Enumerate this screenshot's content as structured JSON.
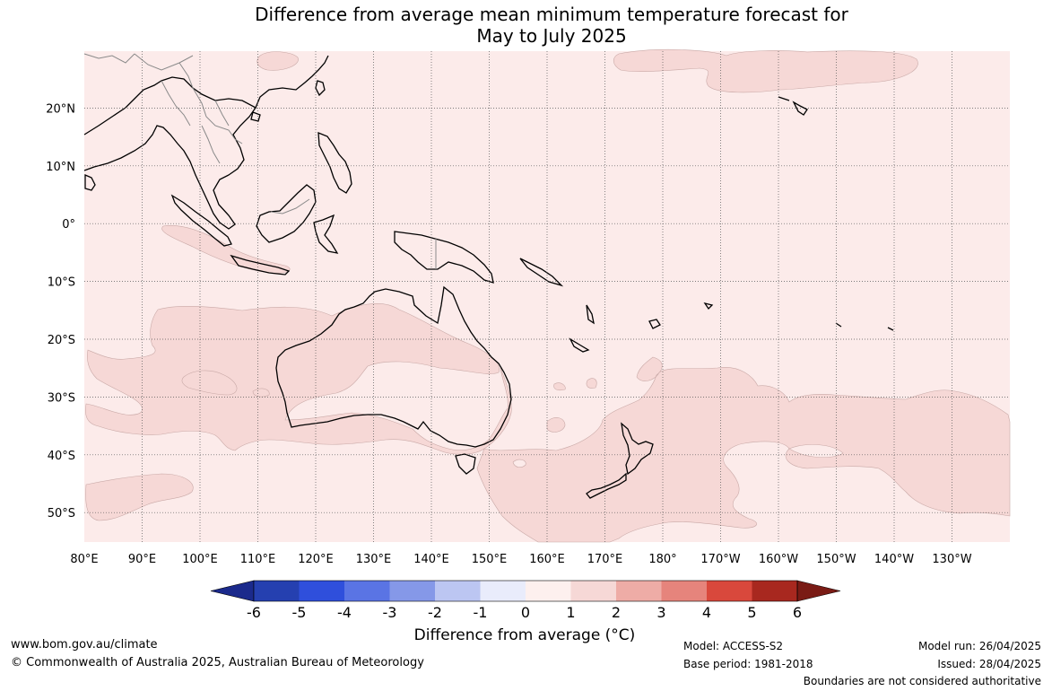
{
  "title": {
    "line1": "Difference from average mean minimum temperature forecast for",
    "line2": "May to July 2025"
  },
  "map": {
    "region": "Indo-Pacific / Australia",
    "lon_range": [
      "80°E",
      "130°W"
    ],
    "lat_range": [
      "55°S",
      "30°N"
    ],
    "lon_ticks": [
      "80°E",
      "90°E",
      "100°E",
      "110°E",
      "120°E",
      "130°E",
      "140°E",
      "150°E",
      "160°E",
      "170°E",
      "180°",
      "170°W",
      "160°W",
      "150°W",
      "140°W",
      "130°W"
    ],
    "lat_ticks": [
      "20°N",
      "10°N",
      "0°",
      "10°S",
      "20°S",
      "30°S",
      "40°S",
      "50°S"
    ],
    "grid": true,
    "background_color": "#fcebea",
    "anomaly_fill_color": "#f6d8d6",
    "coastline_color": "#000000",
    "boundary_color": "#8a8a8a"
  },
  "colorbar": {
    "label": "Difference from average (°C)",
    "tick_labels": [
      "-6",
      "-5",
      "-4",
      "-3",
      "-2",
      "-1",
      "0",
      "1",
      "2",
      "3",
      "4",
      "5",
      "6"
    ],
    "colors": [
      "#1b2a8c",
      "#2540b0",
      "#2f4fdc",
      "#5a74e4",
      "#8598e8",
      "#bcc6f2",
      "#e9ecfb",
      "#fdf0ee",
      "#f6d8d6",
      "#eeaca6",
      "#e6847c",
      "#d9483c",
      "#a8281f",
      "#7a1b15"
    ]
  },
  "footer": {
    "website": "www.bom.gov.au/climate",
    "copyright": "© Commonwealth of Australia 2025, Australian Bureau of Meteorology",
    "model": "Model: ACCESS-S2",
    "base_period": "Base period: 1981-2018",
    "model_run": "Model run: 26/04/2025",
    "issued": "Issued: 28/04/2025",
    "disclaimer": "Boundaries are not considered authoritative"
  }
}
